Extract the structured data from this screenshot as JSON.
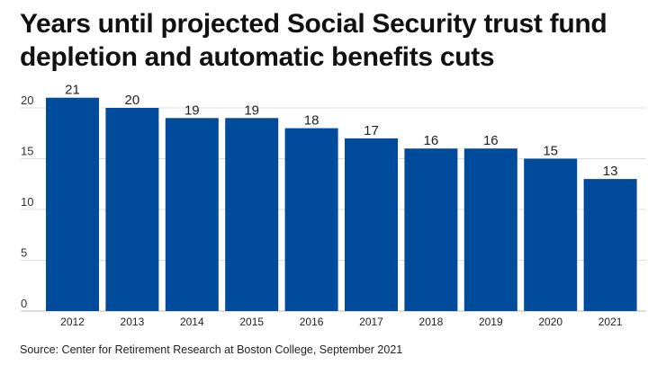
{
  "chart_data": {
    "type": "bar",
    "title": "Years until projected Social Security trust fund depletion and automatic benefits cuts",
    "categories": [
      "2012",
      "2013",
      "2014",
      "2015",
      "2016",
      "2017",
      "2018",
      "2019",
      "2020",
      "2021"
    ],
    "values": [
      21,
      20,
      19,
      19,
      18,
      17,
      16,
      16,
      15,
      13
    ],
    "xlabel": "",
    "ylabel": "",
    "ylim": [
      0,
      22
    ],
    "yticks": [
      0,
      5,
      10,
      15,
      20
    ],
    "grid": true,
    "bar_color": "#004B9B",
    "source": "Source: Center for Retirement Research at Boston College, September 2021"
  }
}
